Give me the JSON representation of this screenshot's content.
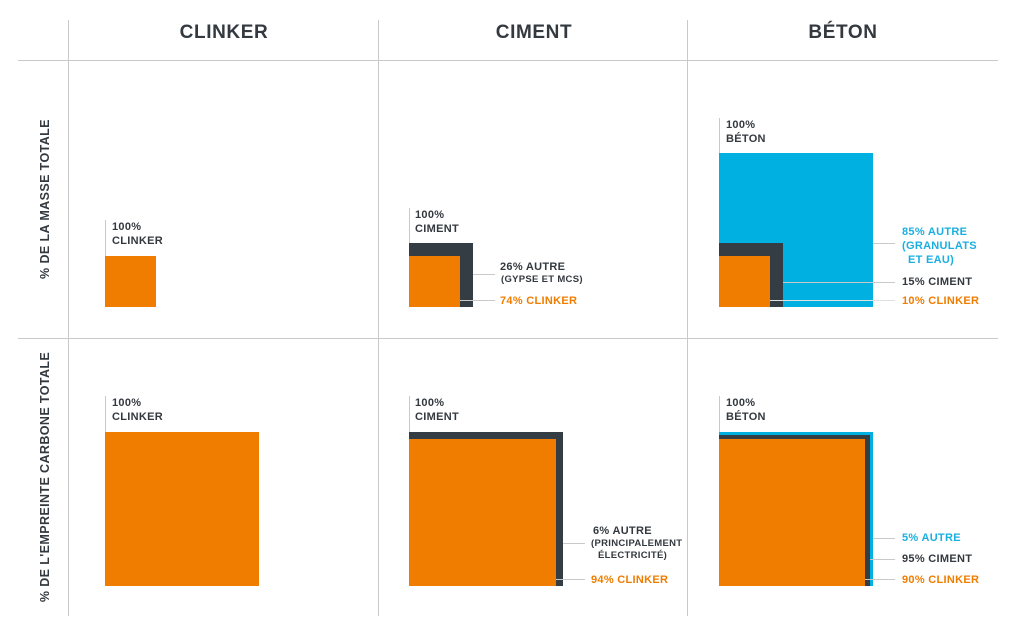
{
  "columns": [
    "CLINKER",
    "CIMENT",
    "BÉTON"
  ],
  "rows": [
    "% DE LA MASSE TOTALE",
    "% DE L'EMPREINTE CARBONE TOTALE"
  ],
  "colors": {
    "clinker": "#f07d00",
    "ciment": "#343c44",
    "beton": "#00b0e0",
    "text": "#33393f"
  },
  "mass": {
    "clinker": {
      "top_pct": "100%",
      "top_name": "CLINKER",
      "clinker_share": 100
    },
    "ciment": {
      "top_pct": "100%",
      "top_name": "CIMENT",
      "autre": "26% AUTRE",
      "autre_detail": "(GYPSE ET MCS)",
      "clinker": "74% CLINKER",
      "clinker_share": 74
    },
    "beton": {
      "top_pct": "100%",
      "top_name": "BÉTON",
      "autre_1": "85% AUTRE",
      "autre_2": "(GRANULATS",
      "autre_3": "ET EAU)",
      "ciment": "15% CIMENT",
      "clinker": "10% CLINKER",
      "ciment_share": 15,
      "clinker_share": 10
    }
  },
  "carbon": {
    "clinker": {
      "top_pct": "100%",
      "top_name": "CLINKER",
      "clinker_share": 100
    },
    "ciment": {
      "top_pct": "100%",
      "top_name": "CIMENT",
      "autre": "6% AUTRE",
      "autre_detail_1": "(PRINCIPALEMENT",
      "autre_detail_2": "ÉLECTRICITÉ)",
      "clinker": "94% CLINKER",
      "clinker_share": 94
    },
    "beton": {
      "top_pct": "100%",
      "top_name": "BÉTON",
      "autre": "5% AUTRE",
      "ciment": "95% CIMENT",
      "clinker": "90% CLINKER",
      "ciment_share": 95,
      "clinker_share": 90
    }
  }
}
